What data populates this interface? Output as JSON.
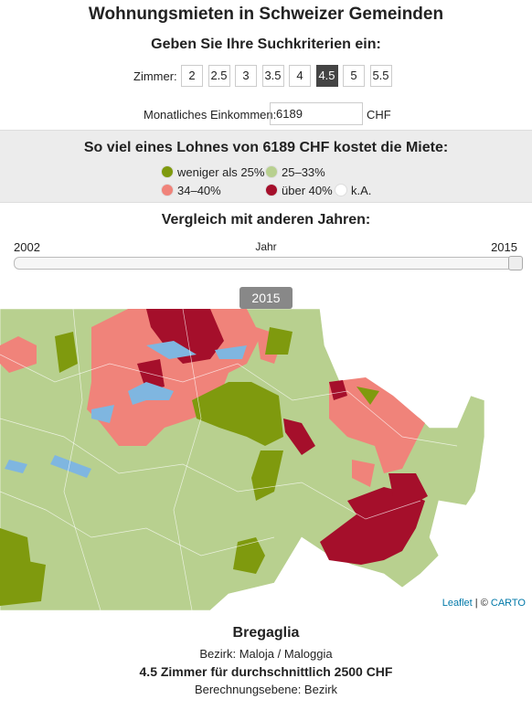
{
  "header": {
    "title": "Wohnungsmieten in Schweizer Gemeinden",
    "subtitle": "Geben Sie Ihre Suchkriterien ein:"
  },
  "rooms": {
    "label": "Zimmer:",
    "options": [
      "2",
      "2.5",
      "3",
      "3.5",
      "4",
      "4.5",
      "5",
      "5.5"
    ],
    "selected_index": 5
  },
  "income": {
    "label": "Monatliches Einkommen:",
    "value": "6189",
    "unit": "CHF"
  },
  "legend": {
    "title": "So viel eines Lohnes von 6189 CHF kostet die Miete:",
    "items": [
      {
        "label": "weniger als 25%",
        "color": "#7f9a0e"
      },
      {
        "label": "25–33%",
        "color": "#b8d08f"
      },
      {
        "label": "34–40%",
        "color": "#f0837a"
      },
      {
        "label": "über 40%",
        "color": "#a50f2b"
      },
      {
        "label": "k.A.",
        "color": "#ffffff"
      }
    ]
  },
  "years": {
    "title": "Vergleich mit anderen Jahren:",
    "start": "2002",
    "axis_label": "Jahr",
    "end": "2015",
    "current": "2015"
  },
  "map": {
    "attribution_leaflet": "Leaflet",
    "attribution_sep": "| ©",
    "attribution_carto": "CARTO"
  },
  "info": {
    "name": "Bregaglia",
    "district": "Bezirk: Maloja / Maloggia",
    "summary": "4.5 Zimmer für durchschnittlich 2500 CHF",
    "level": "Berechnungsebene: Bezirk"
  }
}
